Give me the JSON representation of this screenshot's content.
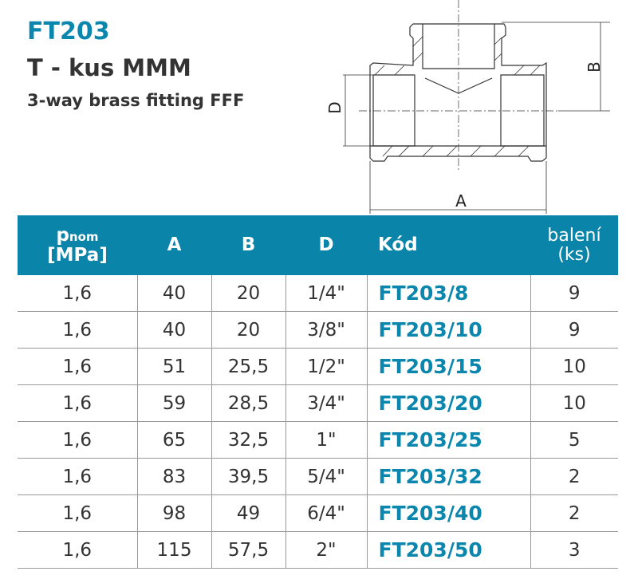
{
  "header": {
    "code": "FT203",
    "name_cz": "T - kus MMM",
    "name_en": "3-way brass fitting FFF"
  },
  "drawing": {
    "labels": {
      "a": "A",
      "b": "B",
      "d": "D"
    }
  },
  "table": {
    "columns": {
      "p": "p",
      "p_sub": "nom",
      "p_unit": "[MPa]",
      "a": "A",
      "b": "B",
      "d": "D",
      "kod": "Kód",
      "baleni": "balení",
      "baleni_unit": "(ks)"
    },
    "rows": [
      {
        "p": "1,6",
        "a": "40",
        "b": "20",
        "d": "1/4\"",
        "kod": "FT203/8",
        "baleni": "9"
      },
      {
        "p": "1,6",
        "a": "40",
        "b": "20",
        "d": "3/8\"",
        "kod": "FT203/10",
        "baleni": "9"
      },
      {
        "p": "1,6",
        "a": "51",
        "b": "25,5",
        "d": "1/2\"",
        "kod": "FT203/15",
        "baleni": "10"
      },
      {
        "p": "1,6",
        "a": "59",
        "b": "28,5",
        "d": "3/4\"",
        "kod": "FT203/20",
        "baleni": "10"
      },
      {
        "p": "1,6",
        "a": "65",
        "b": "32,5",
        "d": "1\"",
        "kod": "FT203/25",
        "baleni": "5"
      },
      {
        "p": "1,6",
        "a": "83",
        "b": "39,5",
        "d": "5/4\"",
        "kod": "FT203/32",
        "baleni": "2"
      },
      {
        "p": "1,6",
        "a": "98",
        "b": "49",
        "d": "6/4\"",
        "kod": "FT203/40",
        "baleni": "2"
      },
      {
        "p": "1,6",
        "a": "115",
        "b": "57,5",
        "d": "2\"",
        "kod": "FT203/50",
        "baleni": "3"
      }
    ]
  },
  "colors": {
    "accent": "#0a84a8",
    "text": "#333333"
  }
}
